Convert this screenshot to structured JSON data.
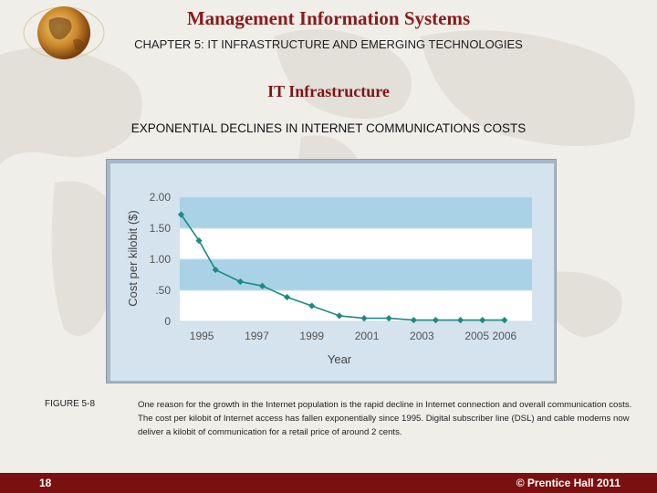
{
  "header": {
    "title": "Management Information Systems",
    "chapter": "CHAPTER 5: IT INFRASTRUCTURE AND EMERGING TECHNOLOGIES"
  },
  "slide": {
    "section_title": "IT Infrastructure",
    "figure_title": "EXPONENTIAL DECLINES IN INTERNET COMMUNICATIONS COSTS",
    "figure_label": "FIGURE  5-8",
    "caption": "One reason for the growth in the Internet population is the rapid decline in Internet connection and overall communication costs. The cost per kilobit of Internet access has fallen exponentially since 1995. Digital subscriber line (DSL) and cable modems now deliver a kilobit of communication for a retail price of around 2 cents."
  },
  "footer": {
    "page_number": "18",
    "copyright": "© Prentice Hall 2011"
  },
  "colors": {
    "title": "#8b1a1a",
    "footer_bg": "#7b1010",
    "chart_frame": "#a6b8c8",
    "plot_band_dark": "#a9d2e6",
    "plot_band_light": "#ffffff",
    "line": "#1d8a80"
  },
  "chart_data": {
    "type": "line",
    "xlabel": "Year",
    "ylabel": "Cost per kilobit ($)",
    "xlim": [
      1994.2,
      2007
    ],
    "ylim": [
      0,
      2.0
    ],
    "x_ticks": [
      1995,
      1997,
      1999,
      2001,
      2003,
      2005,
      2006
    ],
    "x_tick_labels": [
      "1995",
      "1997",
      "1999",
      "2001",
      "2003",
      "2005",
      "2006"
    ],
    "y_ticks": [
      0,
      0.5,
      1.0,
      1.5,
      2.0
    ],
    "y_tick_labels": [
      "0",
      ".50",
      "1.00",
      "1.50",
      "2.00"
    ],
    "grid": false,
    "series": [
      {
        "x": [
          1994.25,
          1994.9,
          1995.5,
          1996.4,
          1997.2,
          1998.1,
          1999.0,
          2000.0,
          2000.9,
          2001.8,
          2002.7,
          2003.5,
          2004.4,
          2005.2,
          2006.0
        ],
        "values": [
          1.72,
          1.3,
          0.83,
          0.64,
          0.57,
          0.39,
          0.25,
          0.09,
          0.05,
          0.05,
          0.02,
          0.02,
          0.02,
          0.02,
          0.02
        ]
      }
    ]
  }
}
